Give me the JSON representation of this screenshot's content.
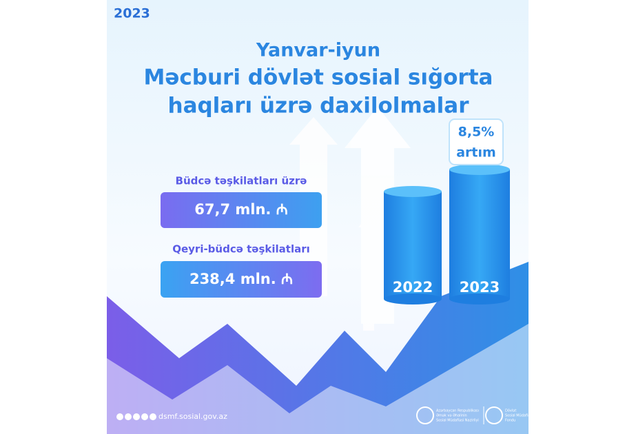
{
  "year_badge": "2023",
  "title": {
    "line1": "Yanvar-iyun",
    "line2": "Məcburi dövlət sosial sığorta",
    "line3": "haqları üzrə daxilolmalar"
  },
  "items": [
    {
      "label": "Büdcə təşkilatları üzrə",
      "value": "67,7 mln. ₼"
    },
    {
      "label": "Qeyri-büdcə təşkilatları",
      "value": "238,4 mln. ₼"
    }
  ],
  "bars": {
    "left": "2022",
    "right": "2023",
    "growth_value": "8,5%",
    "growth_label": "artım"
  },
  "footer": {
    "website": "dsmf.sosial.gov.az",
    "logo1": [
      "Azərbaycan Respublikası",
      "Əmək və Əhalinin",
      "Sosial Müdafiəsi Nazirliyi"
    ],
    "logo2": [
      "Dövlət",
      "Sosial Müdafiə",
      "Fondu"
    ]
  }
}
